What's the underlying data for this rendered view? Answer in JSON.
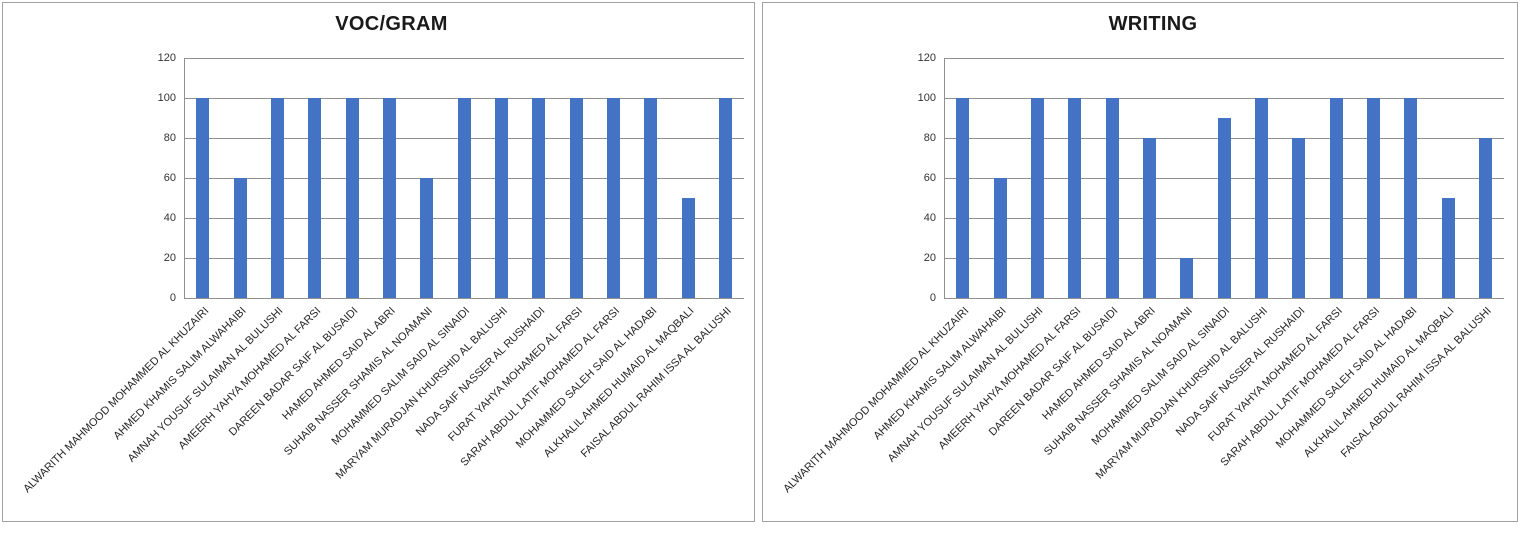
{
  "style": {
    "bar_color": "#4472C4",
    "gridline_color": "#919191",
    "axis_color": "#8f8f8f",
    "chart_border_color": "#a1a1a1",
    "title_color": "#1a1a1a",
    "tick_label_color": "#333333",
    "category_label_color": "#262626",
    "background": "#ffffff"
  },
  "chart_data": [
    {
      "type": "bar",
      "title": "VOC/GRAM",
      "xlabel": "",
      "ylabel": "",
      "ylim": [
        0,
        120
      ],
      "ytick_step": 20,
      "grid": true,
      "legend": "none",
      "categories": [
        "ALWARITH MAHMOOD MOHAMMED AL KHUZAIRI",
        "AHMED KHAMIS SALIM ALWAHAIBI",
        "AMNAH YOUSUF SULAIMAN AL BULUSHI",
        "AMEERH YAHYA MOHAMED AL FARSI",
        "DAREEN BADAR SAIF AL BUSAIDI",
        "HAMED AHMED SAID AL ABRI",
        "SUHAIB NASSER SHAMIS AL NOAMANI",
        "MOHAMMED SALIM SAID AL SINAIDI",
        "MARYAM MURADJAN KHURSHID AL BALUSHI",
        "NADA SAIF NASSER AL RUSHAIDI",
        "FURAT YAHYA MOHAMED AL FARSI",
        "SARAH ABDUL LATIF MOHAMED AL FARSI",
        "MOHAMMED SALEH SAID AL HADABI",
        "ALKHALIL AHMED HUMAID AL MAQBALI",
        "FAISAL ABDUL RAHIM ISSA AL BALUSHI"
      ],
      "values": [
        100,
        60,
        100,
        100,
        100,
        100,
        60,
        100,
        100,
        100,
        100,
        100,
        100,
        50,
        100
      ]
    },
    {
      "type": "bar",
      "title": "WRITING",
      "xlabel": "",
      "ylabel": "",
      "ylim": [
        0,
        120
      ],
      "ytick_step": 20,
      "grid": true,
      "legend": "none",
      "categories": [
        "ALWARITH MAHMOOD MOHAMMED AL KHUZAIRI",
        "AHMED KHAMIS SALIM ALWAHAIBI",
        "AMNAH YOUSUF SULAIMAN AL BULUSHI",
        "AMEERH YAHYA MOHAMED AL FARSI",
        "DAREEN BADAR SAIF AL BUSAIDI",
        "HAMED AHMED SAID AL ABRI",
        "SUHAIB NASSER SHAMIS AL NOAMANI",
        "MOHAMMED SALIM SAID AL SINAIDI",
        "MARYAM MURADJAN KHURSHID AL BALUSHI",
        "NADA SAIF NASSER AL RUSHAIDI",
        "FURAT YAHYA MOHAMED AL FARSI",
        "SARAH ABDUL LATIF MOHAMED AL FARSI",
        "MOHAMMED SALEH SAID AL HADABI",
        "ALKHALIL AHMED HUMAID AL MAQBALI",
        "FAISAL ABDUL RAHIM ISSA AL BALUSHI"
      ],
      "values": [
        100,
        60,
        100,
        100,
        100,
        80,
        20,
        90,
        100,
        80,
        100,
        100,
        100,
        50,
        80
      ]
    }
  ]
}
